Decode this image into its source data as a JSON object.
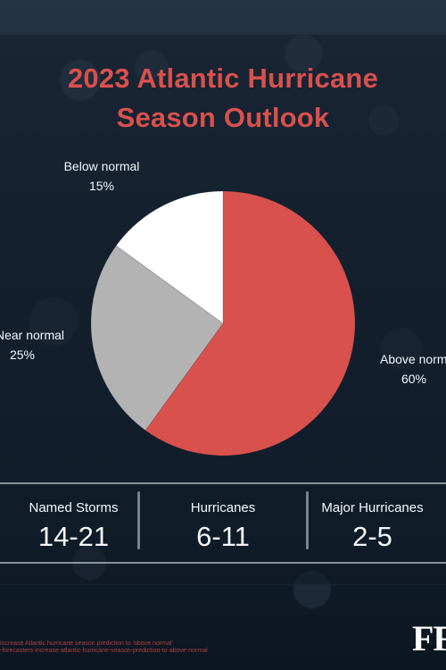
{
  "header": {
    "title_line_1": "2023 Atlantic Hurricane",
    "title_line_2": "Season Outlook"
  },
  "chart_data": {
    "type": "pie",
    "title": "2023 Atlantic Hurricane Season Outlook",
    "categories": [
      "Above normal",
      "Near normal",
      "Below normal"
    ],
    "values": [
      60,
      25,
      15
    ],
    "value_labels": [
      "60%",
      "25%",
      "15%"
    ],
    "colors": [
      "#d8514d",
      "#b3b3b3",
      "#ffffff"
    ],
    "legend": "none"
  },
  "stats": [
    {
      "title": "Named Storms",
      "value": "14-21"
    },
    {
      "title": "Hurricanes",
      "value": "6-11"
    },
    {
      "title": "Major Hurricanes",
      "value": "2-5"
    }
  ],
  "footer": {
    "note_line_1": "increase Atlantic hurricane season prediction to 'above normal' ",
    "note_line_2": "-forecasters-increase-atlantic-hurricane-season-prediction-to-above-normal",
    "logo_text": "FF"
  },
  "colors": {
    "title": "#d8514d",
    "background": "#122130",
    "panel": "#1a2836",
    "text": "#f4f6f8",
    "divider": "#b4bac0"
  }
}
